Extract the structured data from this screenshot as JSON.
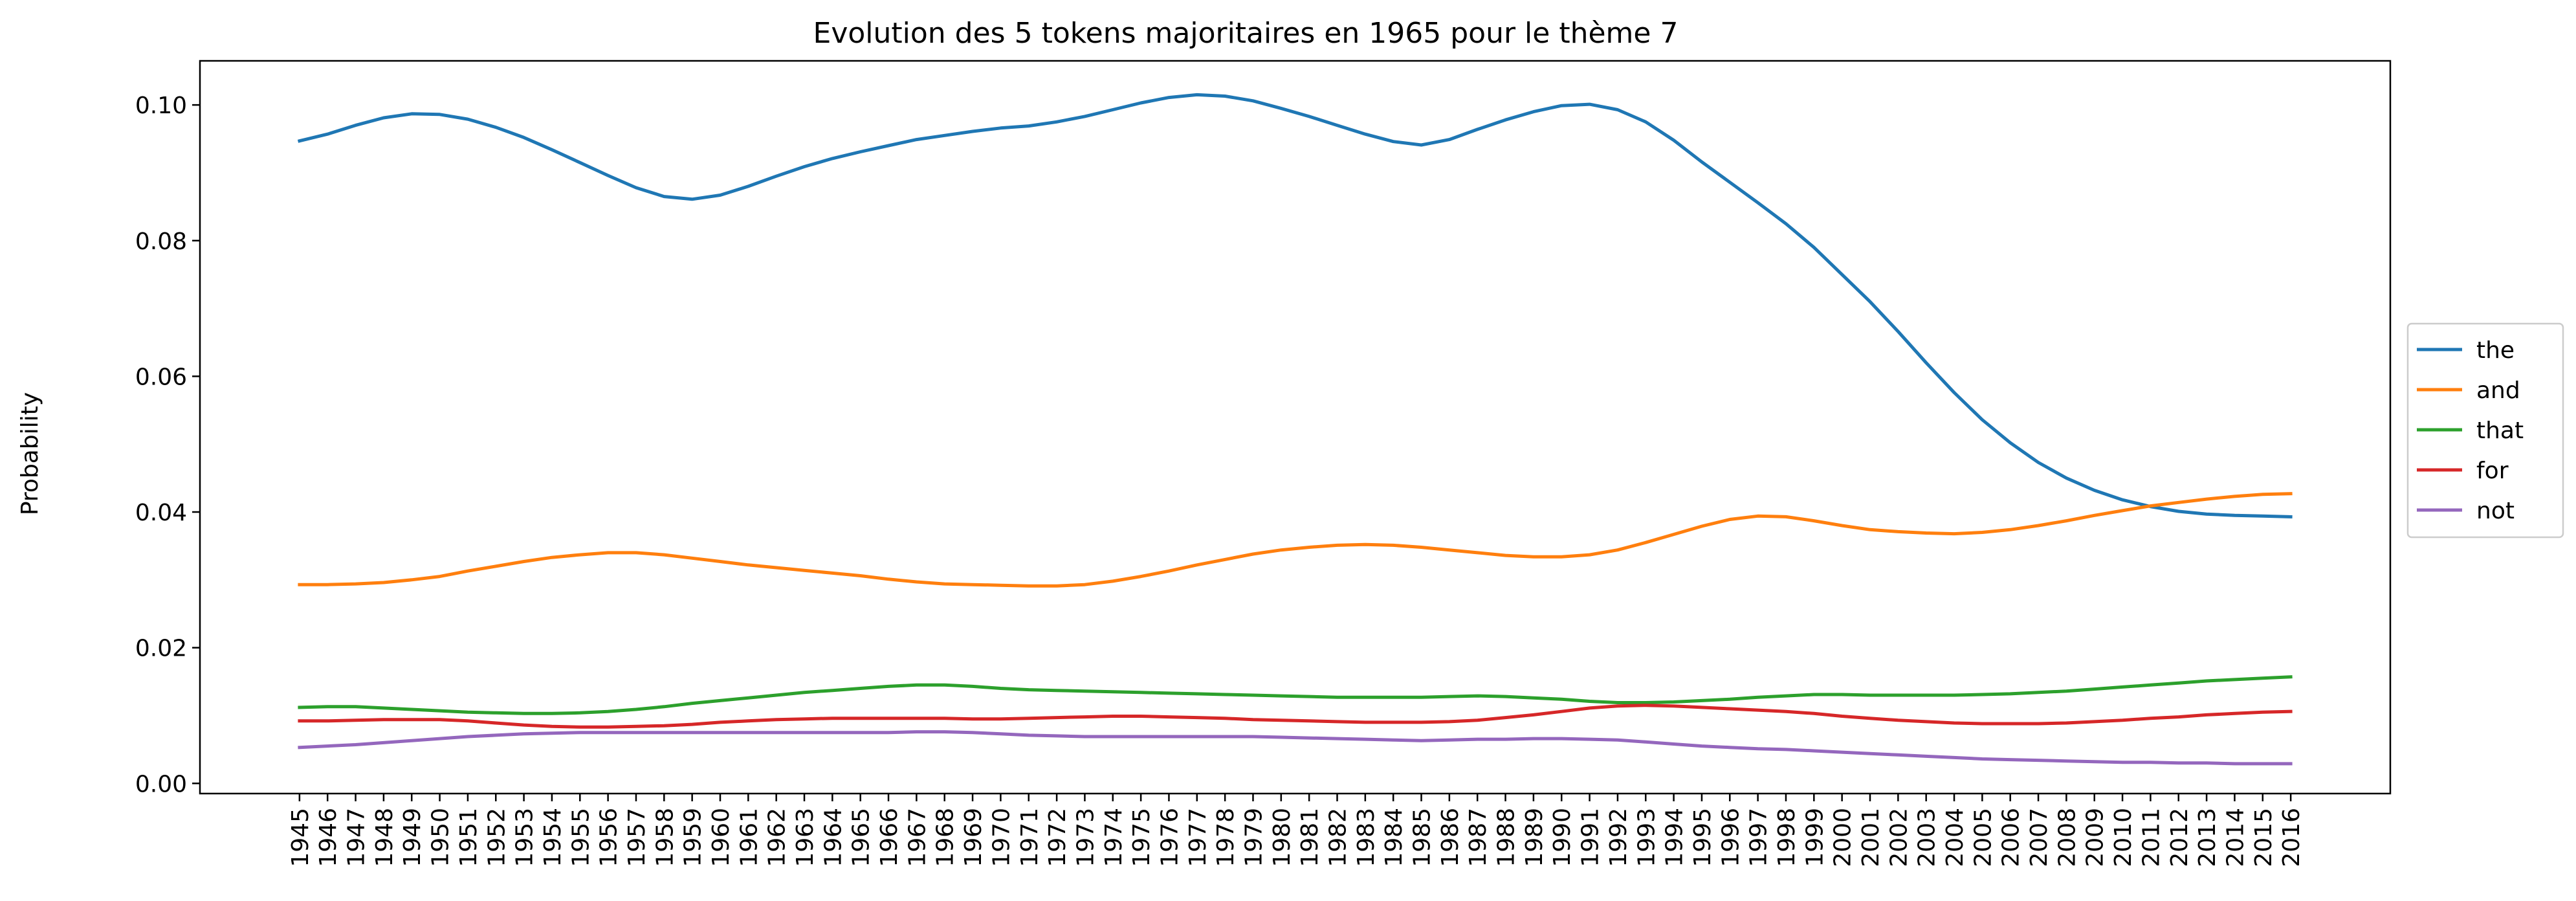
{
  "chart_data": {
    "type": "line",
    "title": "Evolution des 5 tokens majoritaires en 1965 pour le thème 7",
    "xlabel": "",
    "ylabel": "Probability",
    "ylim": [
      -0.0015,
      0.1065
    ],
    "yticks": [
      0.0,
      0.02,
      0.04,
      0.06,
      0.08,
      0.1
    ],
    "ytick_labels": [
      "0.00",
      "0.02",
      "0.04",
      "0.06",
      "0.08",
      "0.10"
    ],
    "x": [
      1945,
      1946,
      1947,
      1948,
      1949,
      1950,
      1951,
      1952,
      1953,
      1954,
      1955,
      1956,
      1957,
      1958,
      1959,
      1960,
      1961,
      1962,
      1963,
      1964,
      1965,
      1966,
      1967,
      1968,
      1969,
      1970,
      1971,
      1972,
      1973,
      1974,
      1975,
      1976,
      1977,
      1978,
      1979,
      1980,
      1981,
      1982,
      1983,
      1984,
      1985,
      1986,
      1987,
      1988,
      1989,
      1990,
      1991,
      1992,
      1993,
      1994,
      1995,
      1996,
      1997,
      1998,
      1999,
      2000,
      2001,
      2002,
      2003,
      2004,
      2005,
      2006,
      2007,
      2008,
      2009,
      2010,
      2011,
      2012,
      2013,
      2014,
      2015,
      2016
    ],
    "legend_position": "center-right",
    "grid": false,
    "series": [
      {
        "name": "the",
        "color": "#1f77b4",
        "values": [
          0.0947,
          0.0957,
          0.097,
          0.0981,
          0.0987,
          0.0986,
          0.0979,
          0.0967,
          0.0952,
          0.0934,
          0.0915,
          0.0896,
          0.0878,
          0.0865,
          0.0861,
          0.0867,
          0.088,
          0.0895,
          0.0909,
          0.0921,
          0.0931,
          0.094,
          0.0949,
          0.0955,
          0.0961,
          0.0966,
          0.0969,
          0.0975,
          0.0983,
          0.0993,
          0.1003,
          0.1011,
          0.1015,
          0.1013,
          0.1006,
          0.0995,
          0.0983,
          0.097,
          0.0957,
          0.0946,
          0.0941,
          0.0949,
          0.0964,
          0.0978,
          0.099,
          0.0999,
          0.1001,
          0.0993,
          0.0975,
          0.0948,
          0.0916,
          0.0886,
          0.0856,
          0.0825,
          0.079,
          0.075,
          0.071,
          0.0666,
          0.062,
          0.0576,
          0.0536,
          0.0502,
          0.0473,
          0.045,
          0.0432,
          0.0418,
          0.0408,
          0.0401,
          0.0397,
          0.0395,
          0.0394,
          0.0393
        ]
      },
      {
        "name": "and",
        "color": "#ff7f0e",
        "values": [
          0.0293,
          0.0293,
          0.0294,
          0.0296,
          0.03,
          0.0305,
          0.0313,
          0.032,
          0.0327,
          0.0333,
          0.0337,
          0.034,
          0.034,
          0.0337,
          0.0332,
          0.0327,
          0.0322,
          0.0318,
          0.0314,
          0.031,
          0.0306,
          0.0301,
          0.0297,
          0.0294,
          0.0293,
          0.0292,
          0.0291,
          0.0291,
          0.0293,
          0.0298,
          0.0305,
          0.0313,
          0.0322,
          0.033,
          0.0338,
          0.0344,
          0.0348,
          0.0351,
          0.0352,
          0.0351,
          0.0348,
          0.0344,
          0.034,
          0.0336,
          0.0334,
          0.0334,
          0.0337,
          0.0344,
          0.0355,
          0.0367,
          0.0379,
          0.0389,
          0.0394,
          0.0393,
          0.0387,
          0.038,
          0.0374,
          0.0371,
          0.0369,
          0.0368,
          0.037,
          0.0374,
          0.038,
          0.0387,
          0.0395,
          0.0402,
          0.0409,
          0.0414,
          0.0419,
          0.0423,
          0.0426,
          0.0427
        ]
      },
      {
        "name": "that",
        "color": "#2ca02c",
        "values": [
          0.0112,
          0.0113,
          0.0113,
          0.0111,
          0.0109,
          0.0107,
          0.0105,
          0.0104,
          0.0103,
          0.0103,
          0.0104,
          0.0106,
          0.0109,
          0.0113,
          0.0118,
          0.0122,
          0.0126,
          0.013,
          0.0134,
          0.0137,
          0.014,
          0.0143,
          0.0145,
          0.0145,
          0.0143,
          0.014,
          0.0138,
          0.0137,
          0.0136,
          0.0135,
          0.0134,
          0.0133,
          0.0132,
          0.0131,
          0.013,
          0.0129,
          0.0128,
          0.0127,
          0.0127,
          0.0127,
          0.0127,
          0.0128,
          0.0129,
          0.0128,
          0.0126,
          0.0124,
          0.0121,
          0.0119,
          0.0119,
          0.012,
          0.0122,
          0.0124,
          0.0127,
          0.0129,
          0.0131,
          0.0131,
          0.013,
          0.013,
          0.013,
          0.013,
          0.0131,
          0.0132,
          0.0134,
          0.0136,
          0.0139,
          0.0142,
          0.0145,
          0.0148,
          0.0151,
          0.0153,
          0.0155,
          0.0157
        ]
      },
      {
        "name": "for",
        "color": "#d62728",
        "values": [
          0.0092,
          0.0092,
          0.0093,
          0.0094,
          0.0094,
          0.0094,
          0.0092,
          0.0089,
          0.0086,
          0.0084,
          0.0083,
          0.0083,
          0.0084,
          0.0085,
          0.0087,
          0.009,
          0.0092,
          0.0094,
          0.0095,
          0.0096,
          0.0096,
          0.0096,
          0.0096,
          0.0096,
          0.0095,
          0.0095,
          0.0096,
          0.0097,
          0.0098,
          0.0099,
          0.0099,
          0.0098,
          0.0097,
          0.0096,
          0.0094,
          0.0093,
          0.0092,
          0.0091,
          0.009,
          0.009,
          0.009,
          0.0091,
          0.0093,
          0.0097,
          0.0101,
          0.0106,
          0.0111,
          0.0114,
          0.0115,
          0.0114,
          0.0112,
          0.011,
          0.0108,
          0.0106,
          0.0103,
          0.0099,
          0.0096,
          0.0093,
          0.0091,
          0.0089,
          0.0088,
          0.0088,
          0.0088,
          0.0089,
          0.0091,
          0.0093,
          0.0096,
          0.0098,
          0.0101,
          0.0103,
          0.0105,
          0.0106
        ]
      },
      {
        "name": "not",
        "color": "#9467bd",
        "values": [
          0.0053,
          0.0055,
          0.0057,
          0.006,
          0.0063,
          0.0066,
          0.0069,
          0.0071,
          0.0073,
          0.0074,
          0.0075,
          0.0075,
          0.0075,
          0.0075,
          0.0075,
          0.0075,
          0.0075,
          0.0075,
          0.0075,
          0.0075,
          0.0075,
          0.0075,
          0.0076,
          0.0076,
          0.0075,
          0.0073,
          0.0071,
          0.007,
          0.0069,
          0.0069,
          0.0069,
          0.0069,
          0.0069,
          0.0069,
          0.0069,
          0.0068,
          0.0067,
          0.0066,
          0.0065,
          0.0064,
          0.0063,
          0.0064,
          0.0065,
          0.0065,
          0.0066,
          0.0066,
          0.0065,
          0.0064,
          0.0061,
          0.0058,
          0.0055,
          0.0053,
          0.0051,
          0.005,
          0.0048,
          0.0046,
          0.0044,
          0.0042,
          0.004,
          0.0038,
          0.0036,
          0.0035,
          0.0034,
          0.0033,
          0.0032,
          0.0031,
          0.0031,
          0.003,
          0.003,
          0.0029,
          0.0029,
          0.0029
        ]
      }
    ]
  }
}
